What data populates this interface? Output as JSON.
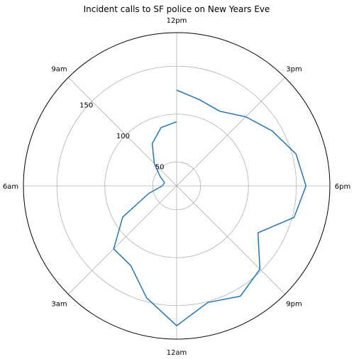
{
  "chart_data": {
    "type": "line",
    "subtype": "polar",
    "title": "Incident calls to SF police on New Years Eve",
    "theta_tick_labels": [
      "12pm",
      "3pm",
      "6pm",
      "9pm",
      "12am",
      "3am",
      "6am",
      "9am"
    ],
    "r_tick_labels": [
      "50",
      "100",
      "150"
    ],
    "r_ticks": [
      50,
      100,
      150
    ],
    "r_range": [
      25,
      185
    ],
    "direction": "clockwise",
    "zero_location": "top",
    "grid": true,
    "series": [
      {
        "color": "#1f77b4",
        "hours": [
          12,
          13,
          14,
          15,
          16,
          17,
          18,
          19,
          20,
          21,
          22,
          23,
          24,
          25,
          26,
          27,
          28,
          29,
          30,
          31,
          32,
          33,
          34,
          35,
          36
        ],
        "values": [
          125,
          118,
          115,
          127,
          140,
          154,
          160,
          152,
          123,
          148,
          158,
          151,
          171,
          146,
          121,
          118,
          90,
          55,
          40,
          38,
          45,
          58,
          76,
          88,
          92
        ]
      }
    ]
  }
}
